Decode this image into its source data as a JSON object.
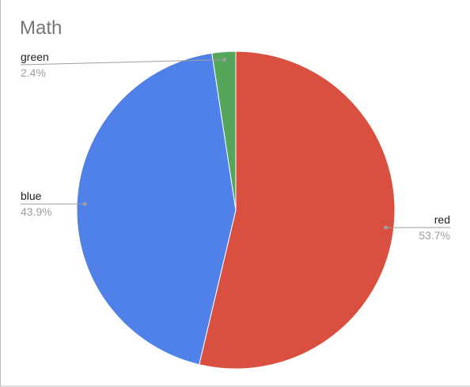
{
  "chart_data": {
    "type": "pie",
    "title": "Math",
    "categories": [
      "red",
      "blue",
      "green"
    ],
    "values": [
      53.7,
      43.9,
      2.4
    ],
    "value_labels": [
      "53.7%",
      "43.9%",
      "2.4%"
    ],
    "colors": [
      "#d95040",
      "#4f81e8",
      "#55a55b"
    ]
  }
}
